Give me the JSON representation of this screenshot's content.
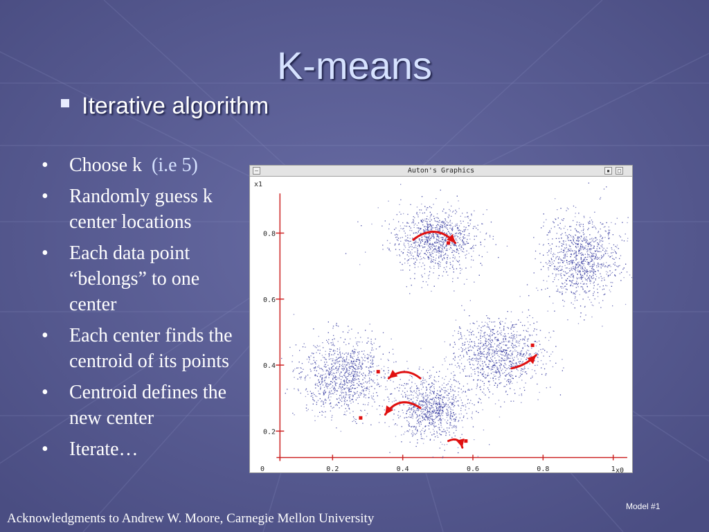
{
  "slide": {
    "title": "K-means",
    "subbullet": "Iterative algorithm",
    "bullets": [
      {
        "text": "Choose k",
        "aside": "(i.e 5)"
      },
      {
        "text": "Randomly guess k center locations"
      },
      {
        "text": "Each data point “belongs” to one center"
      },
      {
        "text": "Each center finds the centroid of its points"
      },
      {
        "text": "Centroid defines the new center"
      },
      {
        "text": "Iterate…"
      }
    ],
    "acknowledgment": "Acknowledgments to Andrew W. Moore, Carnegie Mellon University",
    "slide_label": "Model #1",
    "window_title": "Auton's Graphics",
    "colors": {
      "background": "#56598f",
      "title": "#d6e2ff",
      "points": "#2a2f9a",
      "axes": "#cc2222",
      "arrows": "#e01010"
    }
  },
  "chart_data": {
    "type": "scatter",
    "title": "",
    "xlabel": "x0",
    "ylabel": "x1",
    "xlim": [
      0,
      1.05
    ],
    "ylim": [
      0.1,
      0.95
    ],
    "xticks": [
      0,
      0.2,
      0.4,
      0.6,
      0.8,
      1
    ],
    "xtick_labels": [
      "0",
      "0.2",
      "0.4",
      "0.6",
      "0.8",
      "1"
    ],
    "yticks": [
      0.2,
      0.4,
      0.6,
      0.8
    ],
    "ytick_labels": [
      "0.2",
      "0.4",
      "0.6",
      "0.8"
    ],
    "grid": false,
    "clusters": [
      {
        "center": [
          0.49,
          0.78
        ],
        "spread": [
          0.063,
          0.048
        ],
        "n": 1000
      },
      {
        "center": [
          0.91,
          0.72
        ],
        "spread": [
          0.052,
          0.065
        ],
        "n": 1000
      },
      {
        "center": [
          0.23,
          0.37
        ],
        "spread": [
          0.06,
          0.058
        ],
        "n": 1000
      },
      {
        "center": [
          0.67,
          0.43
        ],
        "spread": [
          0.063,
          0.055
        ],
        "n": 1000
      },
      {
        "center": [
          0.48,
          0.27
        ],
        "spread": [
          0.052,
          0.048
        ],
        "n": 900
      }
    ],
    "centers": [
      [
        0.53,
        0.77
      ],
      [
        0.77,
        0.46
      ],
      [
        0.33,
        0.38
      ],
      [
        0.28,
        0.24
      ],
      [
        0.58,
        0.17
      ]
    ],
    "arrows": [
      {
        "from": [
          0.43,
          0.78
        ],
        "to": [
          0.55,
          0.77
        ],
        "bend": -0.45
      },
      {
        "from": [
          0.71,
          0.39
        ],
        "to": [
          0.78,
          0.43
        ],
        "bend": 0.15
      },
      {
        "from": [
          0.45,
          0.36
        ],
        "to": [
          0.36,
          0.36
        ],
        "bend": 0.4
      },
      {
        "from": [
          0.45,
          0.27
        ],
        "to": [
          0.35,
          0.25
        ],
        "bend": 0.5
      },
      {
        "from": [
          0.53,
          0.17
        ],
        "to": [
          0.57,
          0.15
        ],
        "bend": -0.6
      }
    ]
  }
}
